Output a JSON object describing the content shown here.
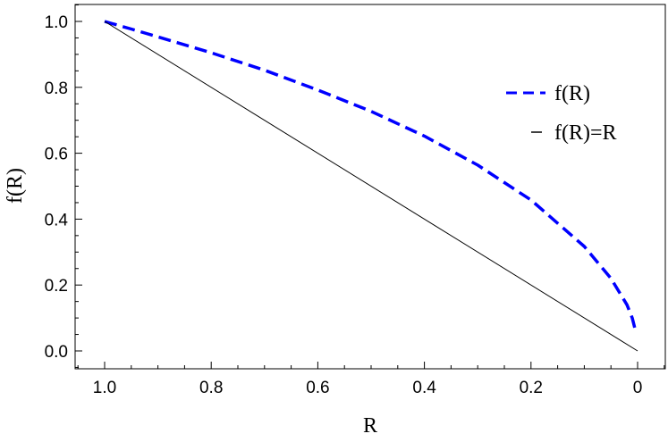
{
  "chart_data": {
    "type": "line",
    "xlabel": "R",
    "ylabel": "f(R)",
    "xlim": [
      1.0,
      0.0
    ],
    "ylim": [
      -0.05,
      1.05
    ],
    "x_reversed": true,
    "x_ticks": [
      1.0,
      0.8,
      0.6,
      0.4,
      0.2,
      0.0
    ],
    "x_tick_labels": [
      "1.0",
      "0.8",
      "0.6",
      "0.4",
      "0.2",
      "0"
    ],
    "y_ticks": [
      0.0,
      0.2,
      0.4,
      0.6,
      0.8,
      1.0
    ],
    "y_tick_labels": [
      "0.0",
      "0.2",
      "0.4",
      "0.6",
      "0.8",
      "1.0"
    ],
    "grid": false,
    "legend_position": "top-right",
    "series": [
      {
        "name": "f(R)",
        "color": "#0000ff",
        "style": "dashed",
        "x": [
          1.0,
          0.95,
          0.9,
          0.85,
          0.8,
          0.7,
          0.6,
          0.5,
          0.4,
          0.3,
          0.2,
          0.1,
          0.05,
          0.02,
          0.01,
          0.003
        ],
        "y": [
          1.0,
          0.977,
          0.953,
          0.929,
          0.905,
          0.852,
          0.792,
          0.727,
          0.652,
          0.564,
          0.458,
          0.317,
          0.22,
          0.14,
          0.1,
          0.055
        ]
      },
      {
        "name": "f(R)=R",
        "color": "#000000",
        "style": "solid",
        "x": [
          1.0,
          0.0
        ],
        "y": [
          1.0,
          0.0
        ]
      }
    ]
  }
}
